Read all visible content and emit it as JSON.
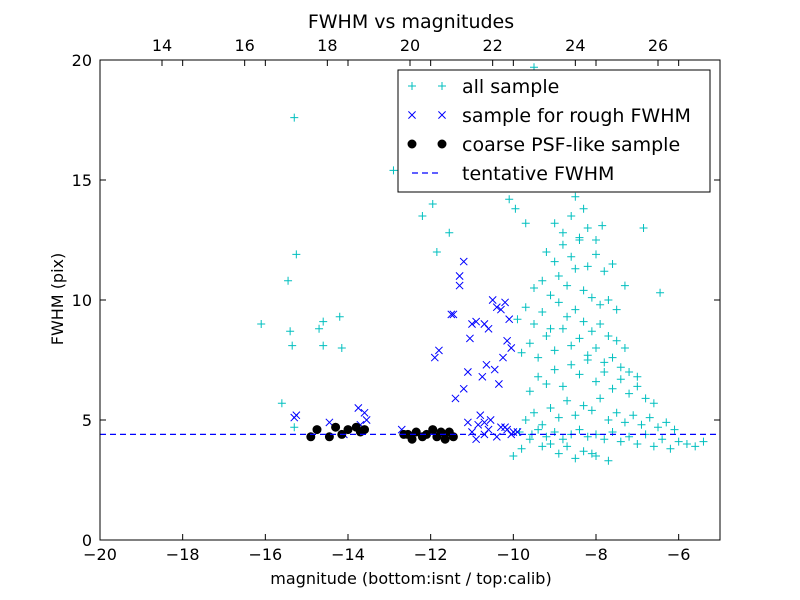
{
  "chart_data": {
    "type": "scatter",
    "title": "FWHM vs magnitudes",
    "xlabel": "magnitude (bottom:isnt / top:calib)",
    "ylabel": "FWHM (pix)",
    "xlim": [
      -20,
      -5
    ],
    "ylim": [
      0,
      20
    ],
    "top_xlim": [
      12.5,
      27.5
    ],
    "x_ticks": [
      -20,
      -18,
      -16,
      -14,
      -12,
      -10,
      -8,
      -6
    ],
    "x_tick_labels": [
      "−20",
      "−18",
      "−16",
      "−14",
      "−12",
      "−10",
      "−8",
      "−6"
    ],
    "y_ticks": [
      0,
      5,
      10,
      15,
      20
    ],
    "y_tick_labels": [
      "0",
      "5",
      "10",
      "15",
      "20"
    ],
    "top_x_ticks": [
      14,
      16,
      18,
      20,
      22,
      24,
      26
    ],
    "top_x_tick_labels": [
      "14",
      "16",
      "18",
      "20",
      "22",
      "24",
      "26"
    ],
    "grid": false,
    "legend_position": "top-right",
    "colors": {
      "all_sample": "#00bfbf",
      "rough_sample": "#0000ff",
      "psf_sample": "#000000",
      "tentative_line": "#0000ff"
    },
    "series": [
      {
        "name": "all sample",
        "marker": "plus",
        "x": [
          -15.3,
          -15.25,
          -15.45,
          -15.4,
          -15.35,
          -16.1,
          -14.6,
          -14.2,
          -14.6,
          -14.15,
          -14.7,
          -15.6,
          -15.3,
          -12.9,
          -12.2,
          -11.95,
          -11.7,
          -11.85,
          -11.55,
          -11.3,
          -11.1,
          -10.8,
          -10.5,
          -10.25,
          -10.1,
          -9.95,
          -9.7,
          -9.5,
          -9.3,
          -9.1,
          -8.9,
          -8.7,
          -8.5,
          -8.3,
          -8.0,
          -7.85,
          -7.6,
          -7.3,
          -6.85,
          -6.45,
          -9.85,
          -9.55,
          -9.4,
          -9.2,
          -9.0,
          -8.8,
          -8.6,
          -8.4,
          -8.2,
          -8.0,
          -7.8,
          -7.6,
          -7.4,
          -7.2,
          -7.0,
          -6.8,
          -6.6,
          -6.4,
          -6.2,
          -6.0,
          -5.8,
          -5.6,
          -5.4,
          -9.7,
          -9.5,
          -9.3,
          -9.1,
          -8.9,
          -8.7,
          -8.5,
          -8.3,
          -8.1,
          -7.9,
          -7.7,
          -7.5,
          -7.3,
          -7.1,
          -6.9,
          -6.7,
          -6.5,
          -6.3,
          -6.1,
          -9.6,
          -9.4,
          -9.2,
          -9.0,
          -8.8,
          -8.6,
          -8.4,
          -8.2,
          -8.0,
          -7.8,
          -7.6,
          -7.4,
          -7.2,
          -7.0,
          -6.8,
          -6.6,
          -9.8,
          -9.6,
          -9.4,
          -9.2,
          -9.0,
          -8.8,
          -8.6,
          -8.4,
          -8.2,
          -8.0,
          -7.8,
          -7.6,
          -7.4,
          -7.2,
          -7.0,
          -9.9,
          -9.7,
          -9.5,
          -9.3,
          -9.1,
          -8.9,
          -8.7,
          -8.5,
          -8.3,
          -8.1,
          -7.9,
          -7.7,
          -7.5,
          -7.3,
          -9.5,
          -9.3,
          -9.1,
          -8.9,
          -8.7,
          -8.5,
          -8.3,
          -8.1,
          -7.9,
          -7.7,
          -7.5,
          -9.2,
          -9.0,
          -8.8,
          -8.6,
          -8.4,
          -8.2,
          -8.0,
          -7.8,
          -9.0,
          -8.8,
          -8.6,
          -8.4,
          -8.2,
          -10.0,
          -9.8,
          -8.9,
          -8.5,
          -8.3,
          -8.7,
          -9.1,
          -8.0,
          -7.7,
          -8.1,
          -9.6,
          -9.3
        ],
        "y": [
          17.6,
          11.9,
          10.8,
          8.7,
          8.1,
          9.0,
          9.1,
          9.3,
          8.1,
          8.0,
          8.8,
          5.7,
          4.7,
          15.4,
          13.5,
          14.0,
          16.2,
          12.0,
          12.8,
          17.0,
          15.3,
          14.8,
          18.0,
          16.4,
          14.2,
          13.8,
          13.2,
          19.7,
          18.6,
          17.2,
          16.0,
          15.5,
          14.3,
          13.8,
          12.5,
          13.1,
          11.5,
          10.6,
          13.0,
          10.3,
          4.5,
          4.4,
          4.6,
          4.3,
          4.5,
          4.2,
          4.4,
          4.6,
          4.3,
          4.4,
          4.2,
          4.5,
          4.1,
          4.3,
          4.0,
          4.4,
          3.9,
          4.2,
          3.8,
          4.1,
          4.0,
          3.9,
          4.1,
          5.0,
          5.3,
          4.8,
          5.5,
          5.1,
          5.8,
          5.2,
          5.6,
          5.4,
          5.9,
          5.0,
          5.3,
          4.9,
          5.2,
          4.8,
          5.1,
          4.7,
          4.9,
          4.6,
          6.2,
          6.8,
          6.5,
          7.1,
          6.4,
          7.3,
          6.9,
          7.5,
          6.6,
          7.0,
          6.3,
          6.7,
          6.1,
          6.4,
          5.9,
          5.7,
          7.8,
          8.2,
          7.6,
          8.5,
          7.9,
          8.8,
          8.1,
          8.4,
          7.7,
          8.0,
          7.4,
          7.6,
          7.2,
          7.0,
          6.8,
          9.2,
          9.7,
          9.0,
          9.5,
          8.8,
          9.9,
          9.3,
          9.6,
          9.1,
          8.7,
          9.0,
          8.5,
          8.3,
          8.0,
          10.5,
          10.8,
          10.2,
          11.0,
          10.6,
          11.3,
          10.4,
          10.1,
          9.8,
          10.0,
          9.6,
          12.0,
          11.6,
          12.3,
          11.8,
          12.5,
          11.4,
          11.9,
          11.2,
          13.2,
          12.8,
          13.5,
          12.6,
          13.0,
          3.5,
          3.8,
          3.6,
          3.4,
          3.7,
          3.9,
          4.0,
          3.5,
          3.3,
          3.6,
          4.2,
          3.9
        ]
      },
      {
        "name": "sample for rough FWHM",
        "marker": "x",
        "x": [
          -15.3,
          -15.25,
          -14.1,
          -13.75,
          -13.7,
          -13.6,
          -13.55,
          -14.45,
          -12.7,
          -12.5,
          -11.3,
          -11.2,
          -11.8,
          -11.9,
          -11.5,
          -11.45,
          -11.3,
          -11.4,
          -11.2,
          -11.1,
          -11.0,
          -10.9,
          -10.7,
          -10.6,
          -10.5,
          -10.4,
          -10.3,
          -10.2,
          -10.1,
          -11.05,
          -10.75,
          -10.65,
          -10.45,
          -10.35,
          -10.25,
          -10.15,
          -10.05,
          -11.0,
          -10.8,
          -10.7,
          -10.55,
          -10.3,
          -10.15,
          -10.05,
          -9.9,
          -10.85,
          -10.6,
          -10.4,
          -10.2,
          -10.0,
          -11.1,
          -10.9,
          -10.7
        ],
        "y": [
          5.1,
          5.2,
          4.4,
          5.5,
          4.8,
          5.3,
          5.0,
          4.9,
          4.6,
          4.4,
          11.0,
          11.6,
          7.9,
          7.6,
          9.4,
          9.4,
          10.6,
          5.9,
          6.3,
          7.0,
          9.0,
          9.1,
          9.0,
          8.8,
          10.0,
          9.7,
          9.6,
          9.9,
          9.2,
          8.4,
          6.8,
          7.3,
          7.1,
          6.5,
          7.6,
          8.3,
          8.0,
          4.5,
          5.2,
          4.9,
          5.0,
          4.7,
          4.6,
          4.4,
          4.5,
          4.8,
          4.6,
          4.3,
          4.7,
          4.5,
          4.9,
          4.2,
          4.4
        ]
      },
      {
        "name": "coarse PSF-like sample",
        "marker": "circle",
        "x": [
          -14.9,
          -14.75,
          -14.45,
          -14.3,
          -14.15,
          -14.0,
          -13.8,
          -13.7,
          -13.6,
          -12.65,
          -12.55,
          -12.45,
          -12.35,
          -12.2,
          -12.1,
          -11.95,
          -11.85,
          -11.75,
          -11.65,
          -11.55,
          -11.45
        ],
        "y": [
          4.3,
          4.6,
          4.3,
          4.7,
          4.4,
          4.6,
          4.7,
          4.5,
          4.6,
          4.4,
          4.4,
          4.2,
          4.5,
          4.3,
          4.4,
          4.6,
          4.3,
          4.5,
          4.2,
          4.5,
          4.3
        ]
      },
      {
        "name": "tentative FWHM",
        "marker": "dashed-line",
        "y_value": 4.4
      }
    ]
  }
}
